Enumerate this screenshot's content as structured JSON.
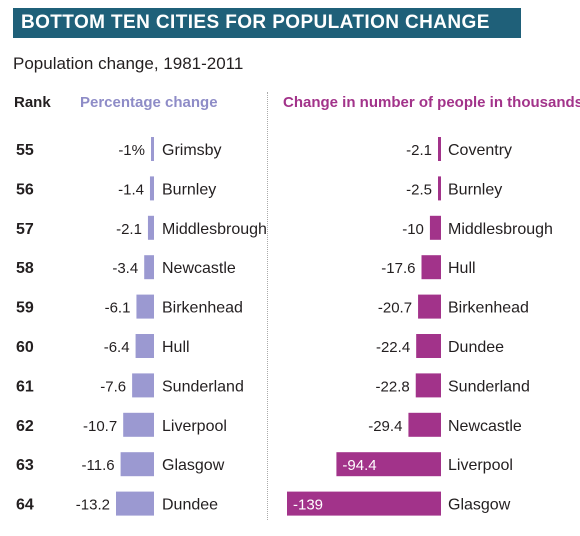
{
  "title": "BOTTOM TEN CITIES FOR POPULATION CHANGE",
  "subtitle": "Population change, 1981-2011",
  "headers": {
    "rank": "Rank",
    "percentage": "Percentage change",
    "number": "Change in number of people in thousands"
  },
  "colors": {
    "title_bg": "#1f6079",
    "percentage_bar": "#9b99d1",
    "percentage_header": "#8e8cc7",
    "number_bar": "#a2338a",
    "number_header": "#a2338a"
  },
  "chart_data": [
    {
      "type": "bar",
      "orientation": "horizontal",
      "title": "Percentage change",
      "ranks": [
        55,
        56,
        57,
        58,
        59,
        60,
        61,
        62,
        63,
        64
      ],
      "categories": [
        "Grimsby",
        "Burnley",
        "Middlesbrough",
        "Newcastle",
        "Birkenhead",
        "Hull",
        "Sunderland",
        "Liverpool",
        "Glasgow",
        "Dundee"
      ],
      "values": [
        -1,
        -1.4,
        -2.1,
        -3.4,
        -6.1,
        -6.4,
        -7.6,
        -10.7,
        -11.6,
        -13.2
      ],
      "value_labels": [
        "-1%",
        "-1.4",
        "-2.1",
        "-3.4",
        "-6.1",
        "-6.4",
        "-7.6",
        "-10.7",
        "-11.6",
        "-13.2"
      ]
    },
    {
      "type": "bar",
      "orientation": "horizontal",
      "title": "Change in number of people in thousands",
      "ranks": [
        55,
        56,
        57,
        58,
        59,
        60,
        61,
        62,
        63,
        64
      ],
      "categories": [
        "Coventry",
        "Burnley",
        "Middlesbrough",
        "Hull",
        "Birkenhead",
        "Dundee",
        "Sunderland",
        "Newcastle",
        "Liverpool",
        "Glasgow"
      ],
      "values": [
        -2.1,
        -2.5,
        -10,
        -17.6,
        -20.7,
        -22.4,
        -22.8,
        -29.4,
        -94.4,
        -139
      ],
      "value_labels": [
        "-2.1",
        "-2.5",
        "-10",
        "-17.6",
        "-20.7",
        "-22.4",
        "-22.8",
        "-29.4",
        "-94.4",
        "-139"
      ]
    }
  ]
}
